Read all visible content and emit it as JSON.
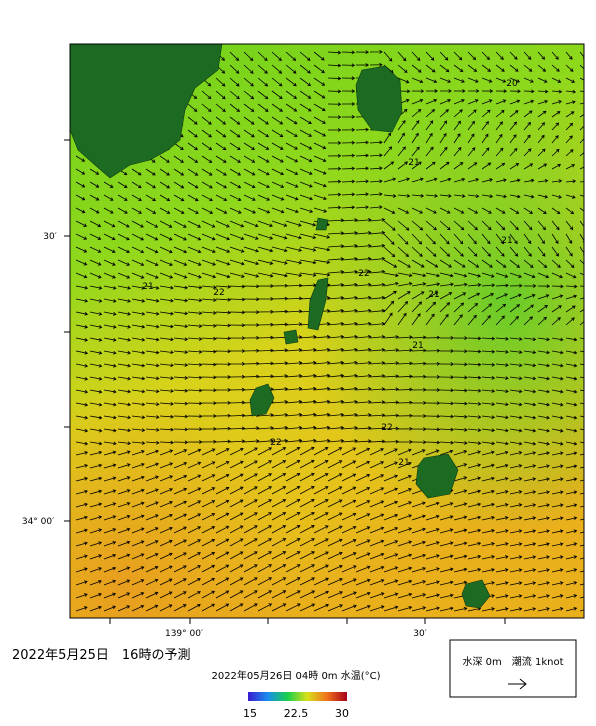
{
  "map": {
    "lat_labels": [
      "30′",
      "34° 00′"
    ],
    "lon_labels": [
      "139° 00′",
      "30′"
    ],
    "contour_labels": [
      "20",
      "21",
      "21",
      "21",
      "22",
      "21",
      "22",
      "21",
      "22",
      "22",
      "21"
    ]
  },
  "caption": {
    "title": "2022年5月25日　16時の予測",
    "subtitle": "2022年05月26日 04時 0m 水温(°C)"
  },
  "colorbar": {
    "ticks": [
      "15",
      "22.5",
      "30"
    ]
  },
  "legend": {
    "text": "水深 0m　潮流 1knot"
  }
}
